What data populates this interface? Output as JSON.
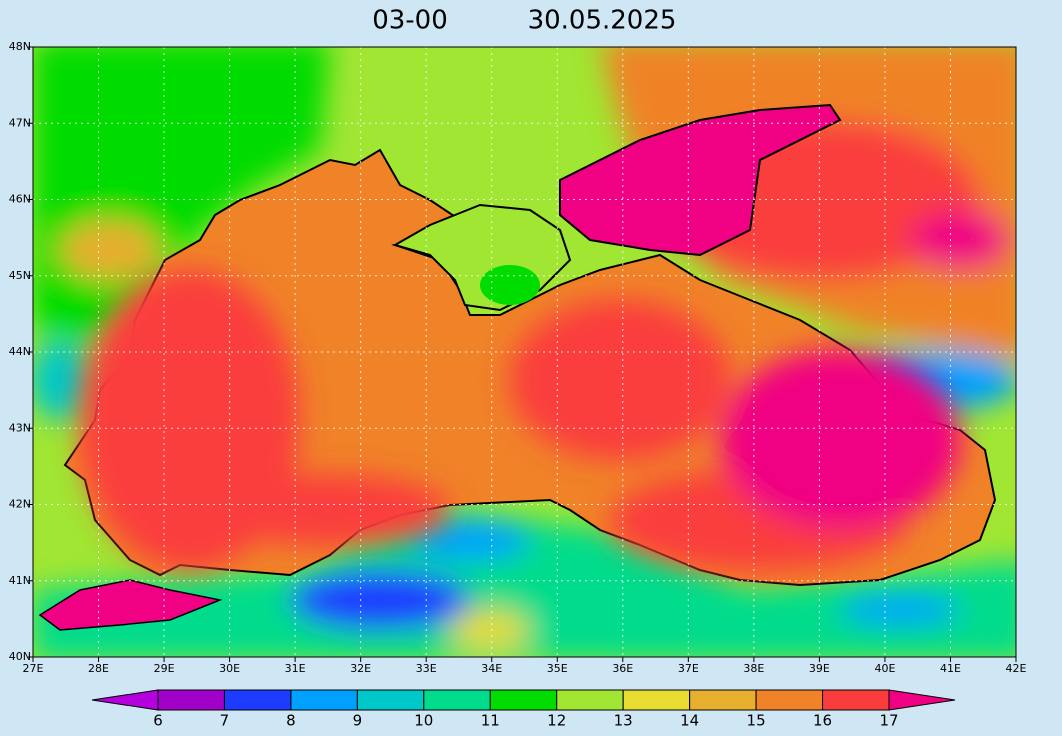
{
  "title": {
    "time": "03-00",
    "date": "30.05.2025"
  },
  "axes": {
    "x_labels": [
      "27E",
      "28E",
      "29E",
      "30E",
      "31E",
      "32E",
      "33E",
      "34E",
      "35E",
      "36E",
      "37E",
      "38E",
      "39E",
      "40E",
      "41E",
      "42E"
    ],
    "y_labels": [
      "48N",
      "47N",
      "46N",
      "45N",
      "44N",
      "43N",
      "42N",
      "41N",
      "40N"
    ]
  },
  "colorbar": {
    "labels": [
      6,
      7,
      8,
      9,
      10,
      11,
      12,
      13,
      14,
      15,
      16,
      17
    ]
  }
}
